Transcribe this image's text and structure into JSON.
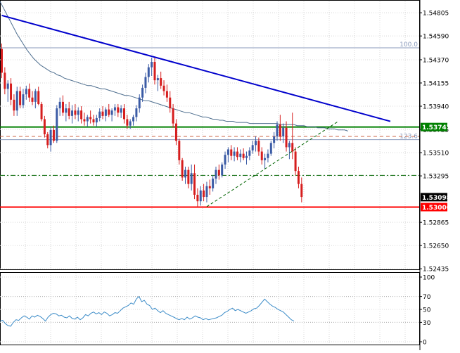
{
  "chart_data": [
    {
      "type": "candlestick",
      "panel": "price",
      "ylim": [
        1.5243,
        1.5491
      ],
      "y_ticks": [
        "1.54805",
        "1.54590",
        "1.54370",
        "1.54155",
        "1.53940",
        "1.53725",
        "1.53510",
        "1.53295",
        "1.52865",
        "1.52650",
        "1.52435"
      ],
      "price_labels": [
        {
          "text": "1.53747",
          "value": 1.53747,
          "color": "#008000",
          "text_color": "#ffffff"
        },
        {
          "text": "1.53098",
          "value": 1.53098,
          "color": "#000000",
          "text_color": "#ffffff"
        },
        {
          "text": "1.53006",
          "value": 1.53006,
          "color": "#ff0000",
          "text_color": "#ffffff"
        }
      ],
      "horizontal_lines": [
        {
          "value": 1.53747,
          "color": "#008000",
          "style": "solid"
        },
        {
          "value": 1.53006,
          "color": "#ff0000",
          "style": "solid"
        },
        {
          "value": 1.5448,
          "color": "#8899bb",
          "style": "solid",
          "label": "100.0"
        },
        {
          "value": 1.5363,
          "color": "#8899bb",
          "style": "solid",
          "label": "123.6"
        },
        {
          "value": 1.5366,
          "color": "#cc6644",
          "style": "dashed"
        },
        {
          "value": 1.533,
          "color": "#006400",
          "style": "dashdot"
        }
      ],
      "trendlines": [
        {
          "from": [
            0,
            1.5478
          ],
          "to": [
            127,
            1.538
          ],
          "color": "#0000cc"
        },
        {
          "from": [
            67,
            1.5301
          ],
          "to": [
            110,
            1.538
          ],
          "color": "#006400",
          "style": "dashed"
        }
      ],
      "moving_average": [
        1.5491,
        1.5485,
        1.5479,
        1.5473,
        1.5467,
        1.5461,
        1.5456,
        1.5451,
        1.5446,
        1.5442,
        1.5438,
        1.5435,
        1.5432,
        1.543,
        1.5428,
        1.5426,
        1.5425,
        1.5423,
        1.5422,
        1.542,
        1.5419,
        1.5418,
        1.5417,
        1.5416,
        1.5415,
        1.5414,
        1.5413,
        1.5413,
        1.5412,
        1.5411,
        1.541,
        1.541,
        1.5409,
        1.5408,
        1.5407,
        1.5406,
        1.5405,
        1.5404,
        1.5404,
        1.5403,
        1.5402,
        1.5401,
        1.54,
        1.5399,
        1.5399,
        1.5398,
        1.5397,
        1.5396,
        1.5395,
        1.5394,
        1.5393,
        1.5392,
        1.5391,
        1.539,
        1.5389,
        1.5388,
        1.5388,
        1.5387,
        1.5386,
        1.5385,
        1.5384,
        1.5384,
        1.5383,
        1.5382,
        1.5382,
        1.5381,
        1.5381,
        1.538,
        1.538,
        1.538,
        1.5379,
        1.5379,
        1.5379,
        1.5379,
        1.5378,
        1.5378,
        1.5378,
        1.5378,
        1.5378,
        1.5378,
        1.5378,
        1.5378,
        1.5378,
        1.5377,
        1.5377,
        1.5377,
        1.5377,
        1.5377,
        1.5376,
        1.5376,
        1.5376,
        1.5375,
        1.5375,
        1.5375,
        1.5374,
        1.5374,
        1.5374,
        1.5373,
        1.5373,
        1.5373,
        1.5372,
        1.5372,
        1.5372,
        1.5371
      ],
      "candles": [
        [
          1.5447,
          1.5452,
          1.542,
          1.5425
        ],
        [
          1.5425,
          1.543,
          1.5405,
          1.541
        ],
        [
          1.541,
          1.5418,
          1.5398,
          1.5415
        ],
        [
          1.5415,
          1.542,
          1.5395,
          1.54
        ],
        [
          1.54,
          1.5405,
          1.5385,
          1.539
        ],
        [
          1.539,
          1.5412,
          1.5385,
          1.5408
        ],
        [
          1.5408,
          1.5412,
          1.5392,
          1.5395
        ],
        [
          1.5395,
          1.541,
          1.5392,
          1.5405
        ],
        [
          1.5405,
          1.5413,
          1.54,
          1.541
        ],
        [
          1.541,
          1.5415,
          1.5398,
          1.5402
        ],
        [
          1.5402,
          1.5408,
          1.5395,
          1.5398
        ],
        [
          1.5398,
          1.541,
          1.5392,
          1.5408
        ],
        [
          1.5408,
          1.5412,
          1.5395,
          1.5396
        ],
        [
          1.5396,
          1.5398,
          1.538,
          1.5382
        ],
        [
          1.5382,
          1.5385,
          1.5365,
          1.5368
        ],
        [
          1.5368,
          1.537,
          1.5355,
          1.5358
        ],
        [
          1.5358,
          1.5375,
          1.5352,
          1.5372
        ],
        [
          1.5372,
          1.5376,
          1.536,
          1.5362
        ],
        [
          1.5362,
          1.5395,
          1.536,
          1.5392
        ],
        [
          1.5392,
          1.5402,
          1.5385,
          1.5398
        ],
        [
          1.5398,
          1.5404,
          1.5385,
          1.5388
        ],
        [
          1.5388,
          1.5396,
          1.538,
          1.5392
        ],
        [
          1.5392,
          1.5398,
          1.5382,
          1.5385
        ],
        [
          1.5385,
          1.5395,
          1.5378,
          1.539
        ],
        [
          1.539,
          1.5396,
          1.5382,
          1.5386
        ],
        [
          1.5386,
          1.5393,
          1.538,
          1.539
        ],
        [
          1.539,
          1.5394,
          1.5378,
          1.5382
        ],
        [
          1.5382,
          1.5388,
          1.5376,
          1.538
        ],
        [
          1.538,
          1.5386,
          1.5375,
          1.5384
        ],
        [
          1.5384,
          1.539,
          1.5378,
          1.5382
        ],
        [
          1.5382,
          1.5386,
          1.5376,
          1.5379
        ],
        [
          1.5379,
          1.5386,
          1.5375,
          1.5383
        ],
        [
          1.5383,
          1.5392,
          1.538,
          1.5389
        ],
        [
          1.5389,
          1.5394,
          1.5382,
          1.5385
        ],
        [
          1.5385,
          1.5393,
          1.538,
          1.5391
        ],
        [
          1.5391,
          1.5396,
          1.5384,
          1.5386
        ],
        [
          1.5386,
          1.5392,
          1.538,
          1.539
        ],
        [
          1.539,
          1.5396,
          1.5385,
          1.5393
        ],
        [
          1.5393,
          1.5396,
          1.5384,
          1.5388
        ],
        [
          1.5388,
          1.5395,
          1.5383,
          1.5392
        ],
        [
          1.5392,
          1.5396,
          1.5378,
          1.5382
        ],
        [
          1.5382,
          1.5386,
          1.5373,
          1.5376
        ],
        [
          1.5376,
          1.5382,
          1.5373,
          1.538
        ],
        [
          1.538,
          1.5386,
          1.5376,
          1.5384
        ],
        [
          1.5384,
          1.5395,
          1.538,
          1.5392
        ],
        [
          1.5392,
          1.5405,
          1.5388,
          1.5402
        ],
        [
          1.5402,
          1.5414,
          1.5398,
          1.5411
        ],
        [
          1.5411,
          1.5425,
          1.5406,
          1.5421
        ],
        [
          1.5421,
          1.5433,
          1.5416,
          1.543
        ],
        [
          1.543,
          1.5439,
          1.5422,
          1.5435
        ],
        [
          1.5435,
          1.544,
          1.5414,
          1.5418
        ],
        [
          1.5418,
          1.5423,
          1.5408,
          1.542
        ],
        [
          1.542,
          1.5426,
          1.541,
          1.5413
        ],
        [
          1.5413,
          1.5418,
          1.5404,
          1.5408
        ],
        [
          1.5408,
          1.5414,
          1.5398,
          1.5402
        ],
        [
          1.5402,
          1.5408,
          1.5388,
          1.5392
        ],
        [
          1.5392,
          1.5396,
          1.5374,
          1.5378
        ],
        [
          1.5378,
          1.5382,
          1.5358,
          1.5362
        ],
        [
          1.5362,
          1.5364,
          1.534,
          1.5344
        ],
        [
          1.5344,
          1.5346,
          1.5325,
          1.5328
        ],
        [
          1.5328,
          1.5338,
          1.5322,
          1.5335
        ],
        [
          1.5335,
          1.5338,
          1.5318,
          1.5322
        ],
        [
          1.5322,
          1.534,
          1.5316,
          1.5332
        ],
        [
          1.5332,
          1.534,
          1.5308,
          1.5312
        ],
        [
          1.5312,
          1.5318,
          1.53,
          1.5306
        ],
        [
          1.5306,
          1.532,
          1.5302,
          1.5316
        ],
        [
          1.5316,
          1.5322,
          1.5306,
          1.531
        ],
        [
          1.531,
          1.5324,
          1.5305,
          1.532
        ],
        [
          1.532,
          1.5326,
          1.5312,
          1.5318
        ],
        [
          1.5318,
          1.533,
          1.5315,
          1.5327
        ],
        [
          1.5327,
          1.5338,
          1.5322,
          1.5335
        ],
        [
          1.5335,
          1.534,
          1.5326,
          1.533
        ],
        [
          1.533,
          1.5342,
          1.5328,
          1.534
        ],
        [
          1.534,
          1.5352,
          1.5336,
          1.5349
        ],
        [
          1.5349,
          1.5356,
          1.5342,
          1.5354
        ],
        [
          1.5354,
          1.5358,
          1.5344,
          1.5348
        ],
        [
          1.5348,
          1.5356,
          1.5343,
          1.5352
        ],
        [
          1.5352,
          1.5356,
          1.5344,
          1.5347
        ],
        [
          1.5347,
          1.5354,
          1.5342,
          1.535
        ],
        [
          1.535,
          1.5355,
          1.5344,
          1.5346
        ],
        [
          1.5346,
          1.5352,
          1.534,
          1.5348
        ],
        [
          1.5348,
          1.5356,
          1.5344,
          1.5353
        ],
        [
          1.5353,
          1.5362,
          1.535,
          1.5358
        ],
        [
          1.5358,
          1.5366,
          1.5352,
          1.5362
        ],
        [
          1.5362,
          1.5365,
          1.5348,
          1.5352
        ],
        [
          1.5352,
          1.5356,
          1.534,
          1.5344
        ],
        [
          1.5344,
          1.535,
          1.5336,
          1.5346
        ],
        [
          1.5346,
          1.5354,
          1.5342,
          1.535
        ],
        [
          1.535,
          1.5362,
          1.5348,
          1.536
        ],
        [
          1.536,
          1.537,
          1.5355,
          1.5366
        ],
        [
          1.5366,
          1.538,
          1.5362,
          1.5377
        ],
        [
          1.5377,
          1.5386,
          1.5362,
          1.5366
        ],
        [
          1.5366,
          1.5378,
          1.536,
          1.5374
        ],
        [
          1.5374,
          1.538,
          1.5352,
          1.5356
        ],
        [
          1.5356,
          1.5362,
          1.5345,
          1.536
        ],
        [
          1.536,
          1.5388,
          1.5345,
          1.5352
        ],
        [
          1.5352,
          1.5356,
          1.533,
          1.5334
        ],
        [
          1.5334,
          1.5338,
          1.5318,
          1.5322
        ],
        [
          1.5322,
          1.5328,
          1.5305,
          1.531
        ]
      ]
    },
    {
      "type": "line",
      "panel": "indicator",
      "ylim": [
        0,
        100
      ],
      "y_ticks": [
        "100",
        "70",
        "50",
        "30",
        "0"
      ],
      "levels": [
        70,
        30
      ],
      "values": [
        32,
        33,
        28,
        25,
        24,
        30,
        34,
        33,
        37,
        40,
        38,
        35,
        40,
        38,
        41,
        39,
        36,
        32,
        38,
        42,
        44,
        43,
        40,
        41,
        38,
        37,
        40,
        36,
        35,
        38,
        34,
        37,
        42,
        40,
        44,
        46,
        43,
        45,
        42,
        46,
        44,
        40,
        42,
        45,
        44,
        48,
        52,
        54,
        56,
        60,
        58,
        66,
        70,
        62,
        64,
        58,
        56,
        50,
        52,
        48,
        45,
        48,
        44,
        42,
        40,
        38,
        36,
        34,
        36,
        34,
        38,
        35,
        37,
        40,
        38,
        37,
        34,
        36,
        34,
        35,
        36,
        37,
        39,
        41,
        45,
        47,
        50,
        52,
        48,
        50,
        48,
        46,
        44,
        46,
        48,
        51,
        52,
        56,
        61,
        66,
        62,
        58,
        55,
        53,
        50,
        48,
        46,
        42,
        38,
        34,
        32
      ]
    }
  ]
}
